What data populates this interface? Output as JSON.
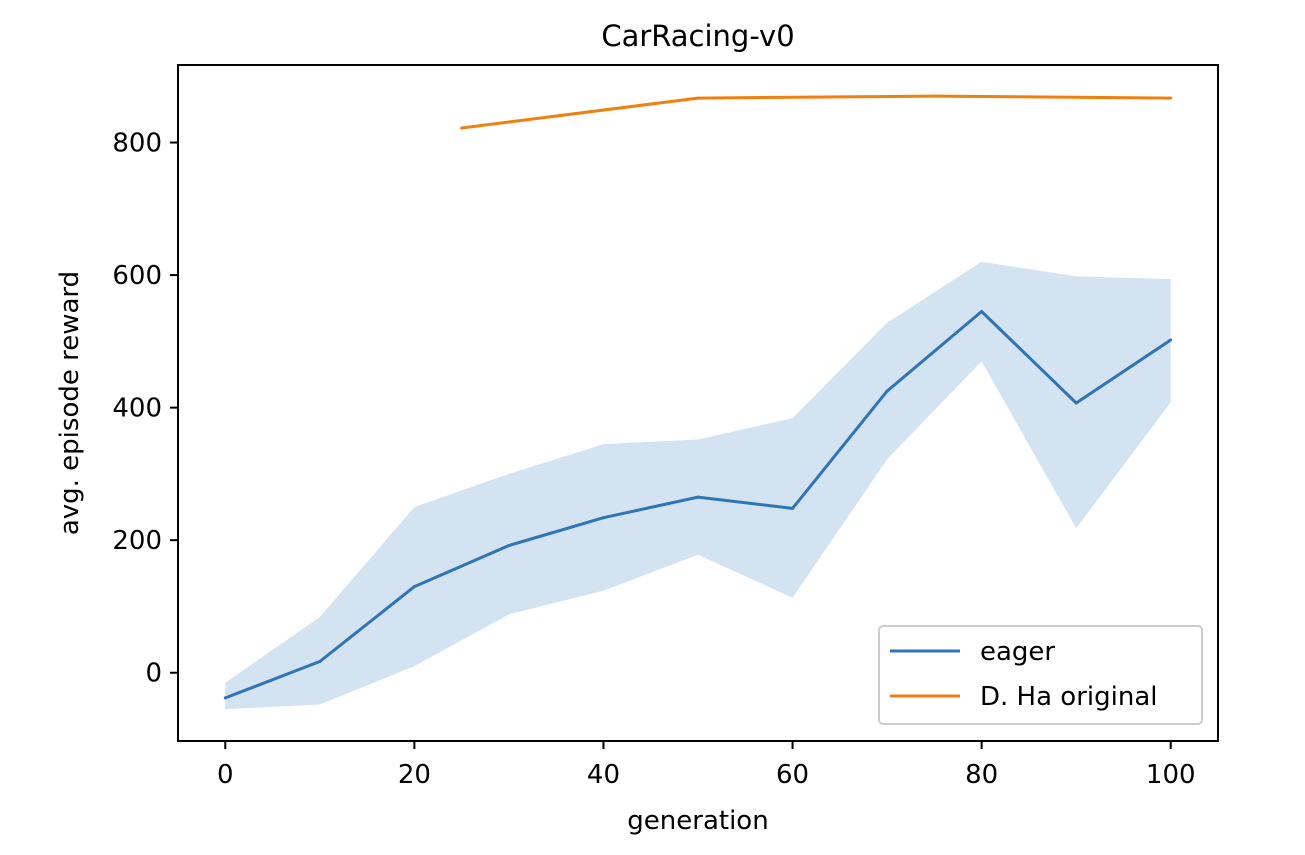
{
  "chart_data": {
    "type": "line",
    "title": "CarRacing-v0",
    "xlabel": "generation",
    "ylabel": "avg. episode reward",
    "xlim": [
      -5,
      105
    ],
    "ylim": [
      -103,
      917
    ],
    "xticks": [
      0,
      20,
      40,
      60,
      80,
      100
    ],
    "yticks": [
      0,
      200,
      400,
      600,
      800
    ],
    "grid": false,
    "legend_position": "lower-right",
    "series": [
      {
        "name": "eager",
        "color": "#2f74b5",
        "x": [
          0,
          10,
          20,
          30,
          40,
          50,
          60,
          70,
          80,
          90,
          100
        ],
        "y": [
          -38,
          17,
          130,
          192,
          234,
          265,
          248,
          425,
          545,
          407,
          502
        ],
        "band_upper": [
          -15,
          84,
          250,
          300,
          345,
          352,
          384,
          528,
          620,
          598,
          594
        ],
        "band_lower": [
          -55,
          -48,
          10,
          88,
          124,
          178,
          113,
          322,
          470,
          218,
          408
        ],
        "band_color": "#d3e3f1"
      },
      {
        "name": "D. Ha original",
        "color": "#f07f0e",
        "x": [
          25,
          50,
          75,
          100
        ],
        "y": [
          822,
          867,
          870,
          867
        ]
      }
    ]
  }
}
